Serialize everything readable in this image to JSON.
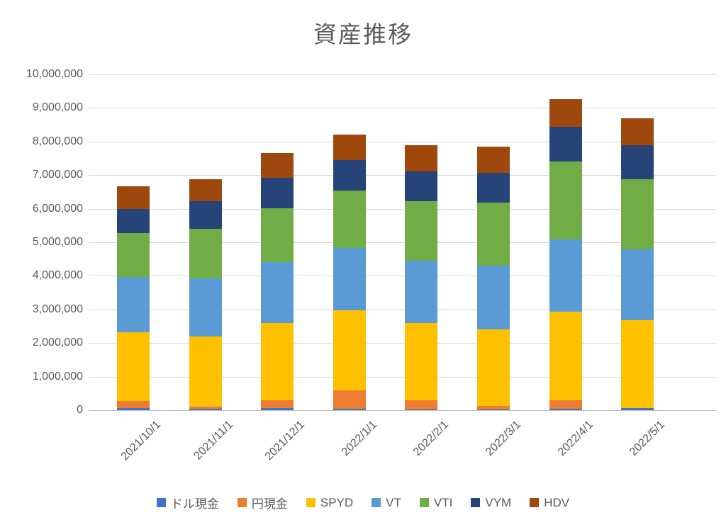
{
  "title": "資産推移",
  "colors": {
    "text": "#595959",
    "gridline": "#D9D9D9",
    "axis_line": "#BFBFBF",
    "background": "#FFFFFF"
  },
  "chart_data": {
    "type": "bar",
    "stacked": true,
    "title": "資産推移",
    "xlabel": "",
    "ylabel": "",
    "ylim": [
      0,
      10000000
    ],
    "ytick_step": 1000000,
    "grid": true,
    "legend_position": "bottom",
    "categories": [
      "2021/10/1",
      "2021/11/1",
      "2021/12/1",
      "2022/1/1",
      "2022/2/1",
      "2022/3/1",
      "2022/4/1",
      "2022/5/1"
    ],
    "series": [
      {
        "name": "ドル現金",
        "color": "#4472C4",
        "values": [
          70000,
          40000,
          70000,
          40000,
          30000,
          30000,
          50000,
          70000
        ]
      },
      {
        "name": "円現金",
        "color": "#ED7D31",
        "values": [
          200000,
          70000,
          230000,
          550000,
          270000,
          90000,
          240000,
          0
        ]
      },
      {
        "name": "SPYD",
        "color": "#FFC000",
        "values": [
          2050000,
          2090000,
          2300000,
          2390000,
          2290000,
          2290000,
          2650000,
          2610000
        ]
      },
      {
        "name": "VT",
        "color": "#5B9BD5",
        "values": [
          1640000,
          1730000,
          1800000,
          1860000,
          1860000,
          1900000,
          2150000,
          2110000
        ]
      },
      {
        "name": "VTI",
        "color": "#70AD47",
        "values": [
          1310000,
          1470000,
          1620000,
          1710000,
          1780000,
          1870000,
          2320000,
          2080000
        ]
      },
      {
        "name": "VYM",
        "color": "#264478",
        "values": [
          730000,
          830000,
          910000,
          890000,
          890000,
          890000,
          1020000,
          1020000
        ]
      },
      {
        "name": "HDV",
        "color": "#9E480E",
        "values": [
          670000,
          650000,
          720000,
          770000,
          780000,
          780000,
          840000,
          810000
        ]
      }
    ],
    "totals": [
      6670000,
      6880000,
      7650000,
      8210000,
      7900000,
      7850000,
      9270000,
      8700000
    ]
  }
}
